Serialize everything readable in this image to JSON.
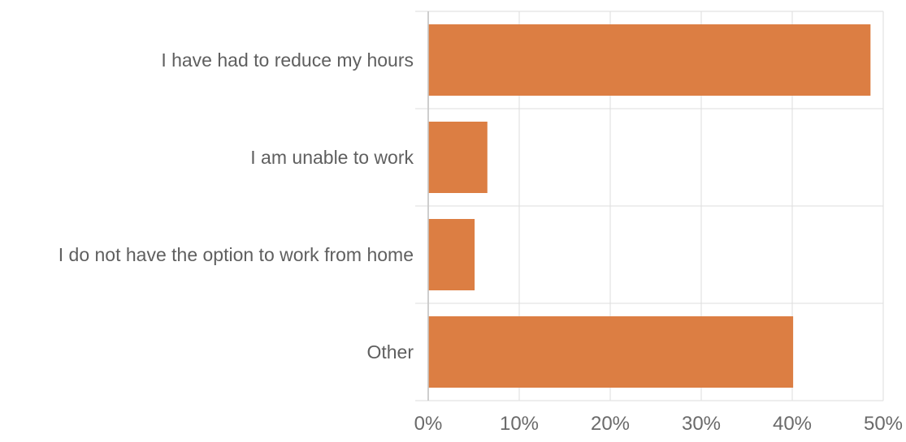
{
  "chart_data": {
    "type": "bar",
    "orientation": "horizontal",
    "categories": [
      "I have had to reduce my hours",
      "I am unable to work",
      "I do not have the option to work from home",
      "Other"
    ],
    "values": [
      48.6,
      6.5,
      5.1,
      40.1
    ],
    "unit": "%",
    "xlim": [
      0,
      50
    ],
    "xticks": [
      "0%",
      "10%",
      "20%",
      "30%",
      "40%",
      "50%"
    ],
    "xtick_values": [
      0,
      10,
      20,
      30,
      40,
      50
    ],
    "grid": true,
    "legend": "none",
    "title": "",
    "xlabel": "",
    "ylabel": ""
  },
  "colors": {
    "bar": "#dc7e43",
    "grid": "#dddddd",
    "axis": "#c8c8c8",
    "label": "#5f5f5f",
    "tick": "#6a6a6a"
  }
}
